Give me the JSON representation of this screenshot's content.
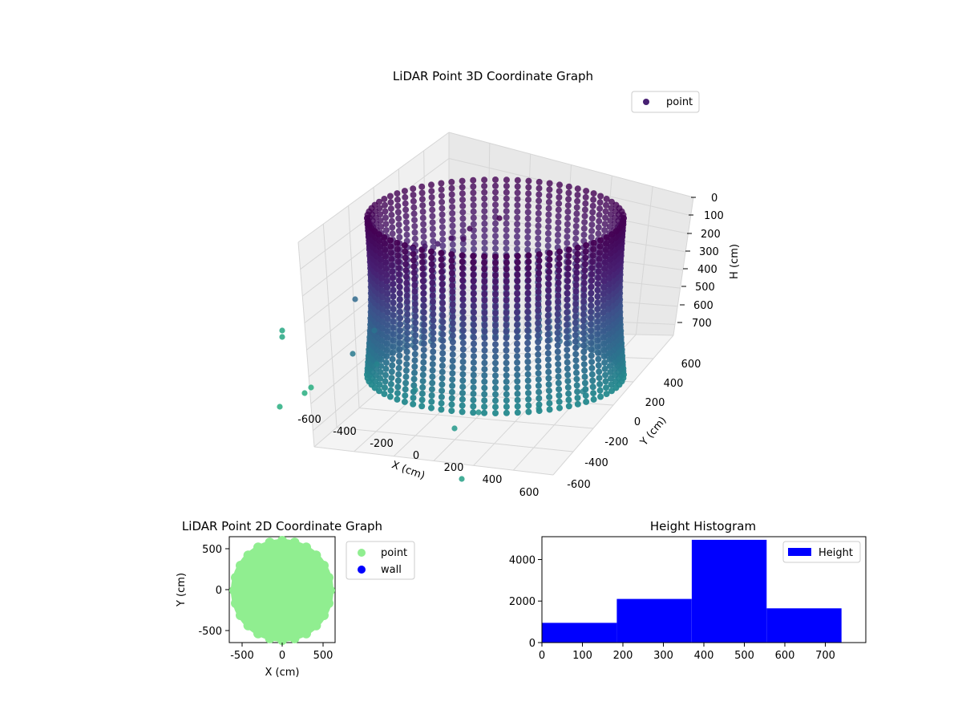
{
  "figure": {
    "chart3d": {
      "title": "LiDAR Point 3D Coordinate Graph",
      "legend": [
        "point"
      ],
      "xlabel": "X (cm)",
      "ylabel": "Y (cm)",
      "zlabel": "H (cm)",
      "x_ticks": [
        "-600",
        "-400",
        "-200",
        "0",
        "200",
        "400",
        "600"
      ],
      "y_ticks": [
        "-600",
        "-400",
        "-200",
        "0",
        "200",
        "400",
        "600"
      ],
      "z_ticks": [
        "0",
        "100",
        "200",
        "300",
        "400",
        "500",
        "600",
        "700"
      ]
    },
    "chart2d": {
      "title": "LiDAR Point 2D Coordinate Graph",
      "xlabel": "X (cm)",
      "ylabel": "Y (cm)",
      "legend": [
        "point",
        "wall"
      ],
      "x_ticks": [
        "-500",
        "0",
        "500"
      ],
      "y_ticks": [
        "500",
        "0",
        "-500"
      ]
    },
    "histogram": {
      "title": "Height Histogram",
      "legend": [
        "Height"
      ],
      "x_ticks": [
        "0",
        "100",
        "200",
        "300",
        "400",
        "500",
        "600",
        "700"
      ],
      "y_ticks": [
        "0",
        "2000",
        "4000"
      ]
    }
  },
  "colors": {
    "viridis_top": "#440154",
    "viridis_mid": "#31688e",
    "viridis_low": "#35b779",
    "light_green": "#90ee90",
    "wall_blue": "#0000ff",
    "hist_blue": "#0000ff"
  },
  "chart_data": [
    {
      "type": "scatter",
      "title": "LiDAR Point 3D Coordinate Graph",
      "xlabel": "X (cm)",
      "ylabel": "Y (cm)",
      "zlabel": "H (cm)",
      "xlim": [
        -650,
        650
      ],
      "ylim": [
        -650,
        650
      ],
      "zlim": [
        0,
        760
      ],
      "z_inverted": true,
      "grid": true,
      "legend": "top-right",
      "series": [
        {
          "name": "point",
          "shape": "cylinder",
          "radius_cm": 620,
          "height_range_cm": [
            0,
            740
          ],
          "colormap": "viridis"
        }
      ]
    },
    {
      "type": "scatter",
      "title": "LiDAR Point 2D Coordinate Graph",
      "xlabel": "X (cm)",
      "ylabel": "Y (cm)",
      "xlim": [
        -650,
        650
      ],
      "ylim": [
        -650,
        650
      ],
      "legend": "outside-right",
      "series": [
        {
          "name": "point",
          "color": "#90ee90",
          "shape": "disk",
          "radius_cm": 620
        },
        {
          "name": "wall",
          "color": "#0000ff",
          "points": []
        }
      ]
    },
    {
      "type": "bar",
      "title": "Height Histogram",
      "xlim": [
        0,
        800
      ],
      "ylim": [
        0,
        5100
      ],
      "legend": "top-right",
      "bin_edges": [
        0,
        185,
        370,
        555,
        740
      ],
      "values": [
        950,
        2100,
        4950,
        1650
      ],
      "series": [
        {
          "name": "Height",
          "color": "#0000ff"
        }
      ]
    }
  ]
}
